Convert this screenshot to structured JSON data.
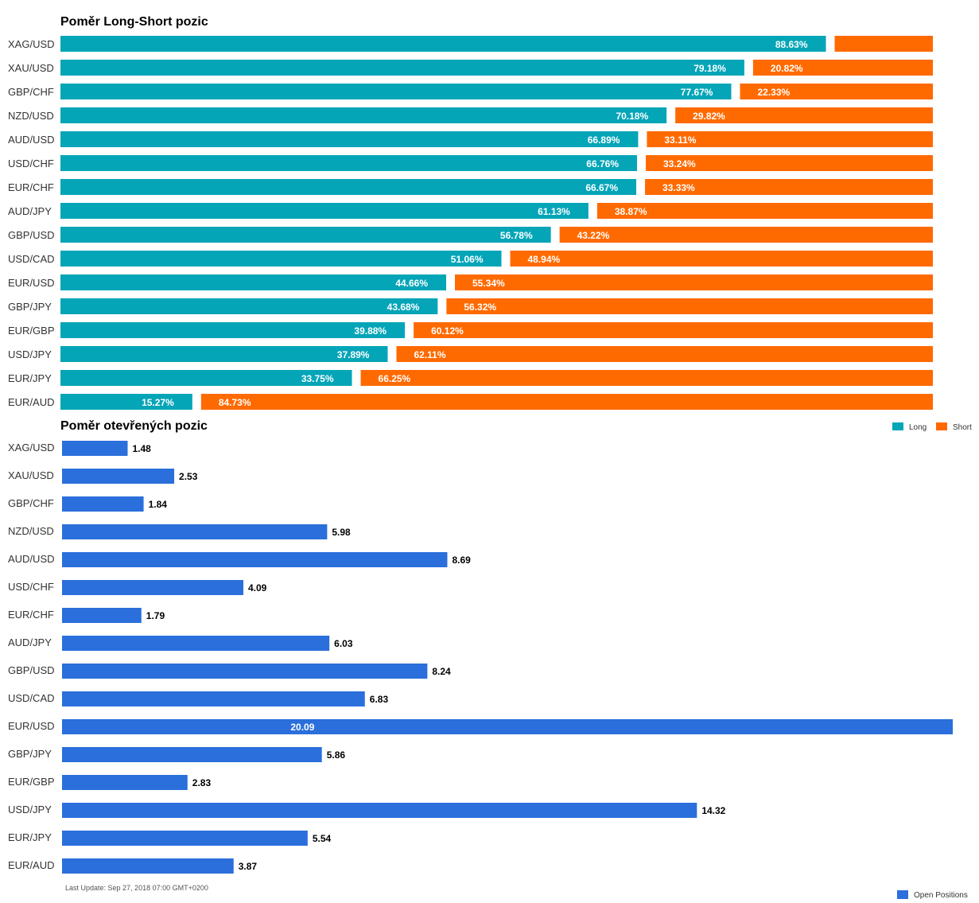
{
  "colors": {
    "long": "#05a5b8",
    "short": "#ff6a00",
    "open": "#2a6fdb"
  },
  "chart_data": [
    {
      "type": "bar",
      "orientation": "horizontal",
      "stacked": true,
      "title": "Poměr Long-Short pozic",
      "categories": [
        "XAG/USD",
        "XAU/USD",
        "GBP/CHF",
        "NZD/USD",
        "AUD/USD",
        "USD/CHF",
        "EUR/CHF",
        "AUD/JPY",
        "GBP/USD",
        "USD/CAD",
        "EUR/USD",
        "GBP/JPY",
        "EUR/GBP",
        "USD/JPY",
        "EUR/JPY",
        "EUR/AUD"
      ],
      "series": [
        {
          "name": "Long",
          "values": [
            88.63,
            79.18,
            77.67,
            70.18,
            66.89,
            66.76,
            66.67,
            61.13,
            56.78,
            51.06,
            44.66,
            43.68,
            39.88,
            37.89,
            33.75,
            15.27
          ],
          "labels": [
            "88.63%",
            "79.18%",
            "77.67%",
            "70.18%",
            "66.89%",
            "66.76%",
            "66.67%",
            "61.13%",
            "56.78%",
            "51.06%",
            "44.66%",
            "43.68%",
            "39.88%",
            "37.89%",
            "33.75%",
            "15.27%"
          ]
        },
        {
          "name": "Short",
          "values": [
            11.37,
            20.82,
            22.33,
            29.82,
            33.11,
            33.24,
            33.33,
            38.87,
            43.22,
            48.94,
            55.34,
            56.32,
            60.12,
            62.11,
            66.25,
            84.73
          ],
          "labels": [
            "",
            "20.82%",
            "22.33%",
            "29.82%",
            "33.11%",
            "33.24%",
            "33.33%",
            "38.87%",
            "43.22%",
            "48.94%",
            "55.34%",
            "56.32%",
            "60.12%",
            "62.11%",
            "66.25%",
            "84.73%"
          ]
        }
      ],
      "xlim": [
        0,
        100
      ],
      "legend_position": "bottom-right"
    },
    {
      "type": "bar",
      "orientation": "horizontal",
      "title": "Poměr otevřených pozic",
      "categories": [
        "XAG/USD",
        "XAU/USD",
        "GBP/CHF",
        "NZD/USD",
        "AUD/USD",
        "USD/CHF",
        "EUR/CHF",
        "AUD/JPY",
        "GBP/USD",
        "USD/CAD",
        "EUR/USD",
        "GBP/JPY",
        "EUR/GBP",
        "USD/JPY",
        "EUR/JPY",
        "EUR/AUD"
      ],
      "series": [
        {
          "name": "Open Positions",
          "values": [
            1.48,
            2.53,
            1.84,
            5.98,
            8.69,
            4.09,
            1.79,
            6.03,
            8.24,
            6.83,
            20.09,
            5.86,
            2.83,
            14.32,
            5.54,
            3.87
          ],
          "labels": [
            "1.48",
            "2.53",
            "1.84",
            "5.98",
            "8.69",
            "4.09",
            "1.79",
            "6.03",
            "8.24",
            "6.83",
            "20.09",
            "5.86",
            "2.83",
            "14.32",
            "5.54",
            "3.87"
          ]
        }
      ],
      "xlim": [
        0,
        20.09
      ],
      "legend_position": "bottom-right"
    }
  ],
  "legend_top": [
    {
      "label": "Long"
    },
    {
      "label": "Short"
    }
  ],
  "legend_bottom": [
    {
      "label": "Open Positions"
    }
  ],
  "footnote": "Last Update: Sep 27, 2018 07:00 GMT+0200"
}
